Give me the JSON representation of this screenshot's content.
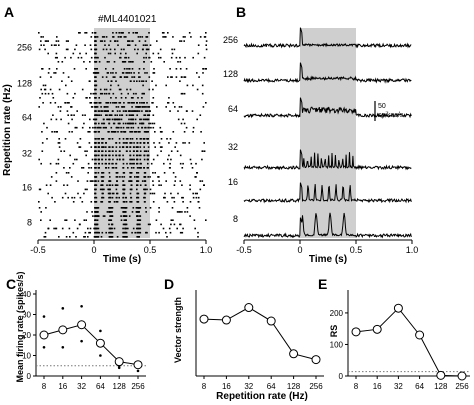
{
  "panels": {
    "A": {
      "letter": "A",
      "unit_id": "#ML4401021",
      "ylabel": "Repetition rate (Hz)",
      "xlabel": "Time (s)"
    },
    "B": {
      "letter": "B",
      "xlabel": "Time (s)",
      "scalebar_value": "50",
      "scalebar_unit": "spikes/s"
    },
    "C": {
      "letter": "C",
      "ylabel": "Mean firing rate (spikes/s)"
    },
    "D": {
      "letter": "D",
      "ylabel": "Vector strength",
      "xlabel": "Repetition rate (Hz)"
    },
    "E": {
      "letter": "E",
      "ylabel": "RS"
    }
  },
  "chart_data": [
    {
      "panel": "A",
      "type": "scatter",
      "subtype": "raster",
      "xlim": [
        -0.5,
        1.0
      ],
      "xticks": [
        "-0.5",
        "0",
        "0.5",
        "1.0"
      ],
      "categories": [
        "256",
        "128",
        "64",
        "32",
        "16",
        "8"
      ],
      "stimulus_window_s": [
        0,
        0.5
      ],
      "title": "#ML4401021",
      "xlabel": "Time (s)",
      "ylabel": "Repetition rate (Hz)"
    },
    {
      "panel": "B",
      "type": "line",
      "subtype": "PSTH",
      "xlim": [
        -0.5,
        1.0
      ],
      "xticks": [
        "-0.5",
        "0",
        "0.5",
        "1.0"
      ],
      "categories": [
        "256",
        "128",
        "64",
        "32",
        "16",
        "8"
      ],
      "stimulus_window_s": [
        0,
        0.5
      ],
      "scalebar": "50 spikes/s",
      "xlabel": "Time (s)"
    },
    {
      "panel": "C",
      "type": "line",
      "categories": [
        "8",
        "16",
        "32",
        "64",
        "128",
        "256"
      ],
      "values": [
        20,
        22.5,
        25,
        16,
        7,
        5.5
      ],
      "ylim": [
        0,
        40
      ],
      "yticks": [
        "0",
        "10",
        "20",
        "30",
        "40"
      ],
      "baseline": 5,
      "individual_points": [
        [
          8,
          29
        ],
        [
          8,
          14
        ],
        [
          16,
          33
        ],
        [
          16,
          14
        ],
        [
          32,
          34
        ],
        [
          32,
          17
        ],
        [
          64,
          22
        ],
        [
          64,
          10
        ],
        [
          128,
          5
        ],
        [
          128,
          4
        ],
        [
          256,
          2.5
        ],
        [
          256,
          6
        ]
      ],
      "ylabel": "Mean firing rate (spikes/s)"
    },
    {
      "panel": "D",
      "type": "line",
      "categories": [
        "8",
        "16",
        "32",
        "64",
        "128",
        "256"
      ],
      "values": [
        0.59,
        0.58,
        0.71,
        0.57,
        0.23,
        0.17
      ],
      "ylim": [
        0,
        0.85
      ],
      "xlabel": "Repetition rate (Hz)",
      "ylabel": "Vector strength"
    },
    {
      "panel": "E",
      "type": "line",
      "categories": [
        "8",
        "16",
        "32",
        "64",
        "128",
        "256"
      ],
      "values": [
        140,
        148,
        215,
        130,
        2,
        0
      ],
      "ylim": [
        0,
        260
      ],
      "yticks": [
        "0",
        "100",
        "200"
      ],
      "threshold": 13.8,
      "ylabel": "RS"
    }
  ]
}
